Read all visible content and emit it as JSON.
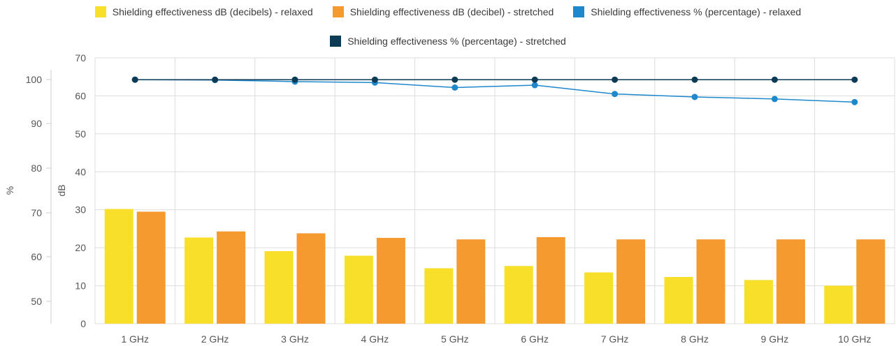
{
  "chart_data": {
    "type": "bar",
    "categories": [
      "1 GHz",
      "2 GHz",
      "3 GHz",
      "4 GHz",
      "5 GHz",
      "6 GHz",
      "7 GHz",
      "8 GHz",
      "9 GHz",
      "10 GHz"
    ],
    "series": [
      {
        "name": "Shielding effectiveness dB (decibels) - relaxed",
        "type": "bar",
        "axis": "dB",
        "color": "#f7df2a",
        "values": [
          30.2,
          22.7,
          19.1,
          17.9,
          14.6,
          15.2,
          13.5,
          12.3,
          11.5,
          10.0
        ]
      },
      {
        "name": "Shielding effectiveness dB (decibel) - stretched",
        "type": "bar",
        "axis": "dB",
        "color": "#f59a2f",
        "values": [
          29.5,
          24.3,
          23.8,
          22.6,
          22.2,
          22.8,
          22.2,
          22.2,
          22.2,
          22.2
        ]
      },
      {
        "name": "Shielding effectiveness % (percentage) - relaxed",
        "type": "line",
        "axis": "%",
        "color": "#1f88cc",
        "values": [
          99.99,
          99.97,
          99.87,
          99.81,
          99.5,
          99.65,
          99.1,
          98.55,
          97.9,
          96.9
        ]
      },
      {
        "name": "Shielding effectiveness % (percentage) - stretched",
        "type": "line",
        "axis": "%",
        "color": "#0d3a55",
        "values": [
          99.99,
          99.99,
          99.99,
          99.99,
          99.99,
          99.99,
          99.99,
          99.99,
          99.99,
          99.99
        ]
      }
    ],
    "y_left": {
      "label": "%",
      "ticks": [
        "50",
        "60",
        "70",
        "80",
        "90",
        "100"
      ]
    },
    "y_right": {
      "label": "dB",
      "ticks": [
        "0",
        "10",
        "20",
        "30",
        "40",
        "50",
        "60",
        "70"
      ],
      "range": [
        0,
        70
      ]
    },
    "grid": true,
    "legend_position": "top-center"
  }
}
